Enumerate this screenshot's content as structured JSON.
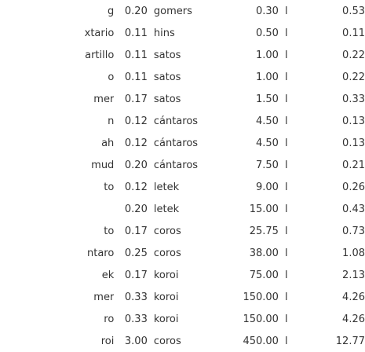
{
  "table": {
    "rows": [
      {
        "name": "g",
        "v1": "0.20",
        "unit": "gomers",
        "v2": "0.30",
        "l": "l",
        "v3": "0.53"
      },
      {
        "name": "xtario",
        "v1": "0.11",
        "unit": "hins",
        "v2": "0.50",
        "l": "l",
        "v3": "0.11"
      },
      {
        "name": "artillo",
        "v1": "0.11",
        "unit": "satos",
        "v2": "1.00",
        "l": "l",
        "v3": "0.22"
      },
      {
        "name": "o",
        "v1": "0.11",
        "unit": "satos",
        "v2": "1.00",
        "l": "l",
        "v3": "0.22"
      },
      {
        "name": "mer",
        "v1": "0.17",
        "unit": "satos",
        "v2": "1.50",
        "l": "l",
        "v3": "0.33"
      },
      {
        "name": "n",
        "v1": "0.12",
        "unit": "cántaros",
        "v2": "4.50",
        "l": "l",
        "v3": "0.13"
      },
      {
        "name": "ah",
        "v1": "0.12",
        "unit": "cántaros",
        "v2": "4.50",
        "l": "l",
        "v3": "0.13"
      },
      {
        "name": "mud",
        "v1": "0.20",
        "unit": "cántaros",
        "v2": "7.50",
        "l": "l",
        "v3": "0.21"
      },
      {
        "name": "to",
        "v1": "0.12",
        "unit": "letek",
        "v2": "9.00",
        "l": "l",
        "v3": "0.26"
      },
      {
        "name": "",
        "v1": "0.20",
        "unit": "letek",
        "v2": "15.00",
        "l": "l",
        "v3": "0.43",
        "link": true
      },
      {
        "name": "to",
        "v1": "0.17",
        "unit": "coros",
        "v2": "25.75",
        "l": "l",
        "v3": "0.73"
      },
      {
        "name": "ntaro",
        "v1": "0.25",
        "unit": "coros",
        "v2": "38.00",
        "l": "l",
        "v3": "1.08"
      },
      {
        "name": "ek",
        "v1": "0.17",
        "unit": "koroi",
        "v2": "75.00",
        "l": "l",
        "v3": "2.13"
      },
      {
        "name": "mer",
        "v1": "0.33",
        "unit": "koroi",
        "v2": "150.00",
        "l": "l",
        "v3": "4.26"
      },
      {
        "name": "ro",
        "v1": "0.33",
        "unit": "koroi",
        "v2": "150.00",
        "l": "l",
        "v3": "4.26"
      },
      {
        "name": "roi",
        "v1": "3.00",
        "unit": "coros",
        "v2": "450.00",
        "l": "l",
        "v3": "12.77"
      }
    ]
  }
}
